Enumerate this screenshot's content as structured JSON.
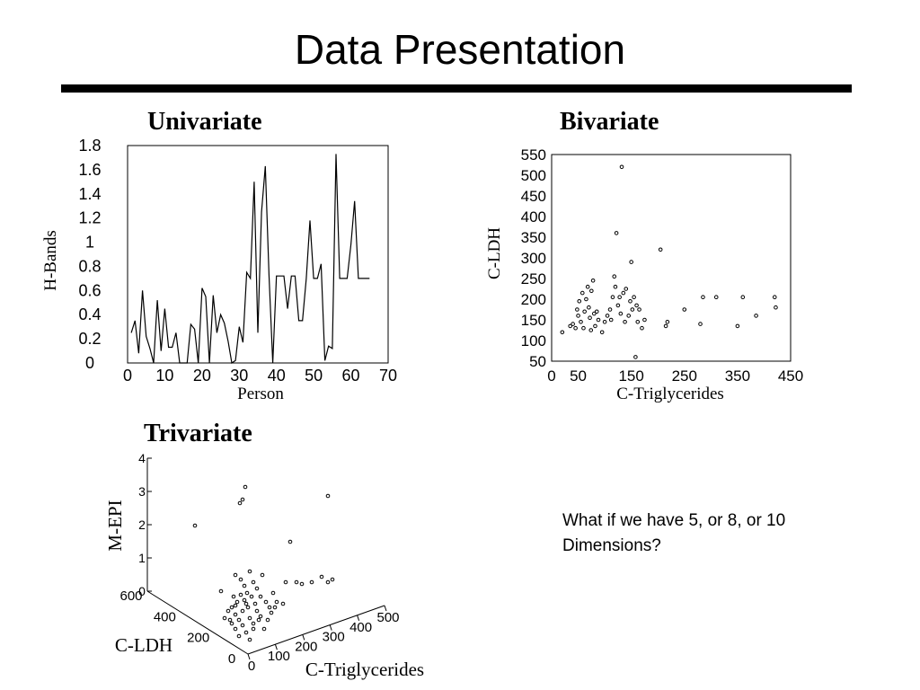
{
  "slide": {
    "title": "Data Presentation",
    "note": "What if we have 5, or 8, or 10 Dimensions?"
  },
  "chart_data": [
    {
      "type": "line",
      "heading": "Univariate",
      "xlabel": "Person",
      "ylabel": "H-Bands",
      "xlim": [
        0,
        70
      ],
      "ylim": [
        0,
        1.8
      ],
      "x_ticks": [
        "0",
        "10",
        "20",
        "30",
        "40",
        "50",
        "60",
        "70"
      ],
      "y_ticks": [
        "0",
        "0.2",
        "0.4",
        "0.6",
        "0.8",
        "1",
        "1.2",
        "1.4",
        "1.6",
        "1.8"
      ],
      "x": [
        1,
        2,
        3,
        4,
        5,
        6,
        7,
        8,
        9,
        10,
        11,
        12,
        13,
        14,
        15,
        16,
        17,
        18,
        19,
        20,
        21,
        22,
        23,
        24,
        25,
        26,
        27,
        28,
        29,
        30,
        31,
        32,
        33,
        34,
        35,
        36,
        37,
        38,
        39,
        40,
        41,
        42,
        43,
        44,
        45,
        46,
        47,
        48,
        49,
        50,
        51,
        52,
        53,
        54,
        55,
        56,
        57,
        58,
        59,
        60,
        61,
        62,
        63,
        64,
        65
      ],
      "values": [
        0.25,
        0.35,
        0.08,
        0.6,
        0.22,
        0.12,
        0,
        0.52,
        0.1,
        0.45,
        0.13,
        0.13,
        0.25,
        0,
        0,
        0,
        0.32,
        0.28,
        0,
        0.62,
        0.55,
        0,
        0.56,
        0.25,
        0.4,
        0.33,
        0.18,
        0,
        0.02,
        0.3,
        0.17,
        0.75,
        0.7,
        1.5,
        0.25,
        1.25,
        1.63,
        0.73,
        0,
        0.72,
        0.72,
        0.72,
        0.45,
        0.72,
        0.72,
        0.35,
        0.35,
        0.7,
        1.18,
        0.7,
        0.7,
        0.82,
        0.02,
        0.14,
        0.12,
        1.73,
        0.7,
        0.7,
        0.7,
        0.98,
        1.34,
        0.7,
        0.7,
        0.7,
        0.7
      ]
    },
    {
      "type": "scatter",
      "heading": "Bivariate",
      "xlabel": "C-Triglycerides",
      "ylabel": "C-LDH",
      "xlim": [
        0,
        450
      ],
      "ylim": [
        50,
        550
      ],
      "x_ticks": [
        "0",
        "50",
        "150",
        "250",
        "350",
        "450"
      ],
      "x_tick_values": [
        0,
        50,
        150,
        250,
        350,
        450
      ],
      "y_ticks": [
        "50",
        "100",
        "150",
        "200",
        "250",
        "300",
        "350",
        "400",
        "450",
        "500",
        "550"
      ],
      "points": [
        [
          20,
          120
        ],
        [
          35,
          135
        ],
        [
          40,
          140
        ],
        [
          45,
          130
        ],
        [
          48,
          175
        ],
        [
          50,
          160
        ],
        [
          52,
          195
        ],
        [
          55,
          145
        ],
        [
          58,
          215
        ],
        [
          60,
          130
        ],
        [
          62,
          170
        ],
        [
          65,
          200
        ],
        [
          68,
          230
        ],
        [
          70,
          180
        ],
        [
          72,
          155
        ],
        [
          74,
          125
        ],
        [
          75,
          220
        ],
        [
          78,
          245
        ],
        [
          80,
          165
        ],
        [
          82,
          135
        ],
        [
          85,
          170
        ],
        [
          88,
          150
        ],
        [
          95,
          120
        ],
        [
          100,
          145
        ],
        [
          105,
          160
        ],
        [
          110,
          175
        ],
        [
          112,
          150
        ],
        [
          115,
          205
        ],
        [
          118,
          255
        ],
        [
          120,
          230
        ],
        [
          122,
          360
        ],
        [
          125,
          185
        ],
        [
          128,
          205
        ],
        [
          130,
          165
        ],
        [
          132,
          520
        ],
        [
          135,
          215
        ],
        [
          138,
          145
        ],
        [
          140,
          225
        ],
        [
          145,
          160
        ],
        [
          148,
          195
        ],
        [
          150,
          290
        ],
        [
          152,
          175
        ],
        [
          155,
          205
        ],
        [
          158,
          60
        ],
        [
          160,
          185
        ],
        [
          162,
          145
        ],
        [
          165,
          175
        ],
        [
          170,
          130
        ],
        [
          175,
          150
        ],
        [
          205,
          320
        ],
        [
          215,
          135
        ],
        [
          218,
          145
        ],
        [
          250,
          175
        ],
        [
          280,
          140
        ],
        [
          285,
          205
        ],
        [
          310,
          205
        ],
        [
          350,
          135
        ],
        [
          360,
          205
        ],
        [
          385,
          160
        ],
        [
          420,
          205
        ],
        [
          422,
          180
        ]
      ]
    },
    {
      "type": "scatter",
      "heading": "Trivariate",
      "xlabel": "C-Triglycerides",
      "ylabel": "C-LDH",
      "zlabel": "M-EPI",
      "xlim": [
        0,
        500
      ],
      "ylim": [
        0,
        600
      ],
      "zlim": [
        0,
        4
      ],
      "x_ticks": [
        "0",
        "100",
        "200",
        "300",
        "400",
        "500"
      ],
      "y_ticks": [
        "0",
        "200",
        "400",
        "600"
      ],
      "z_ticks": [
        "0",
        "1",
        "2",
        "3",
        "4"
      ]
    }
  ]
}
